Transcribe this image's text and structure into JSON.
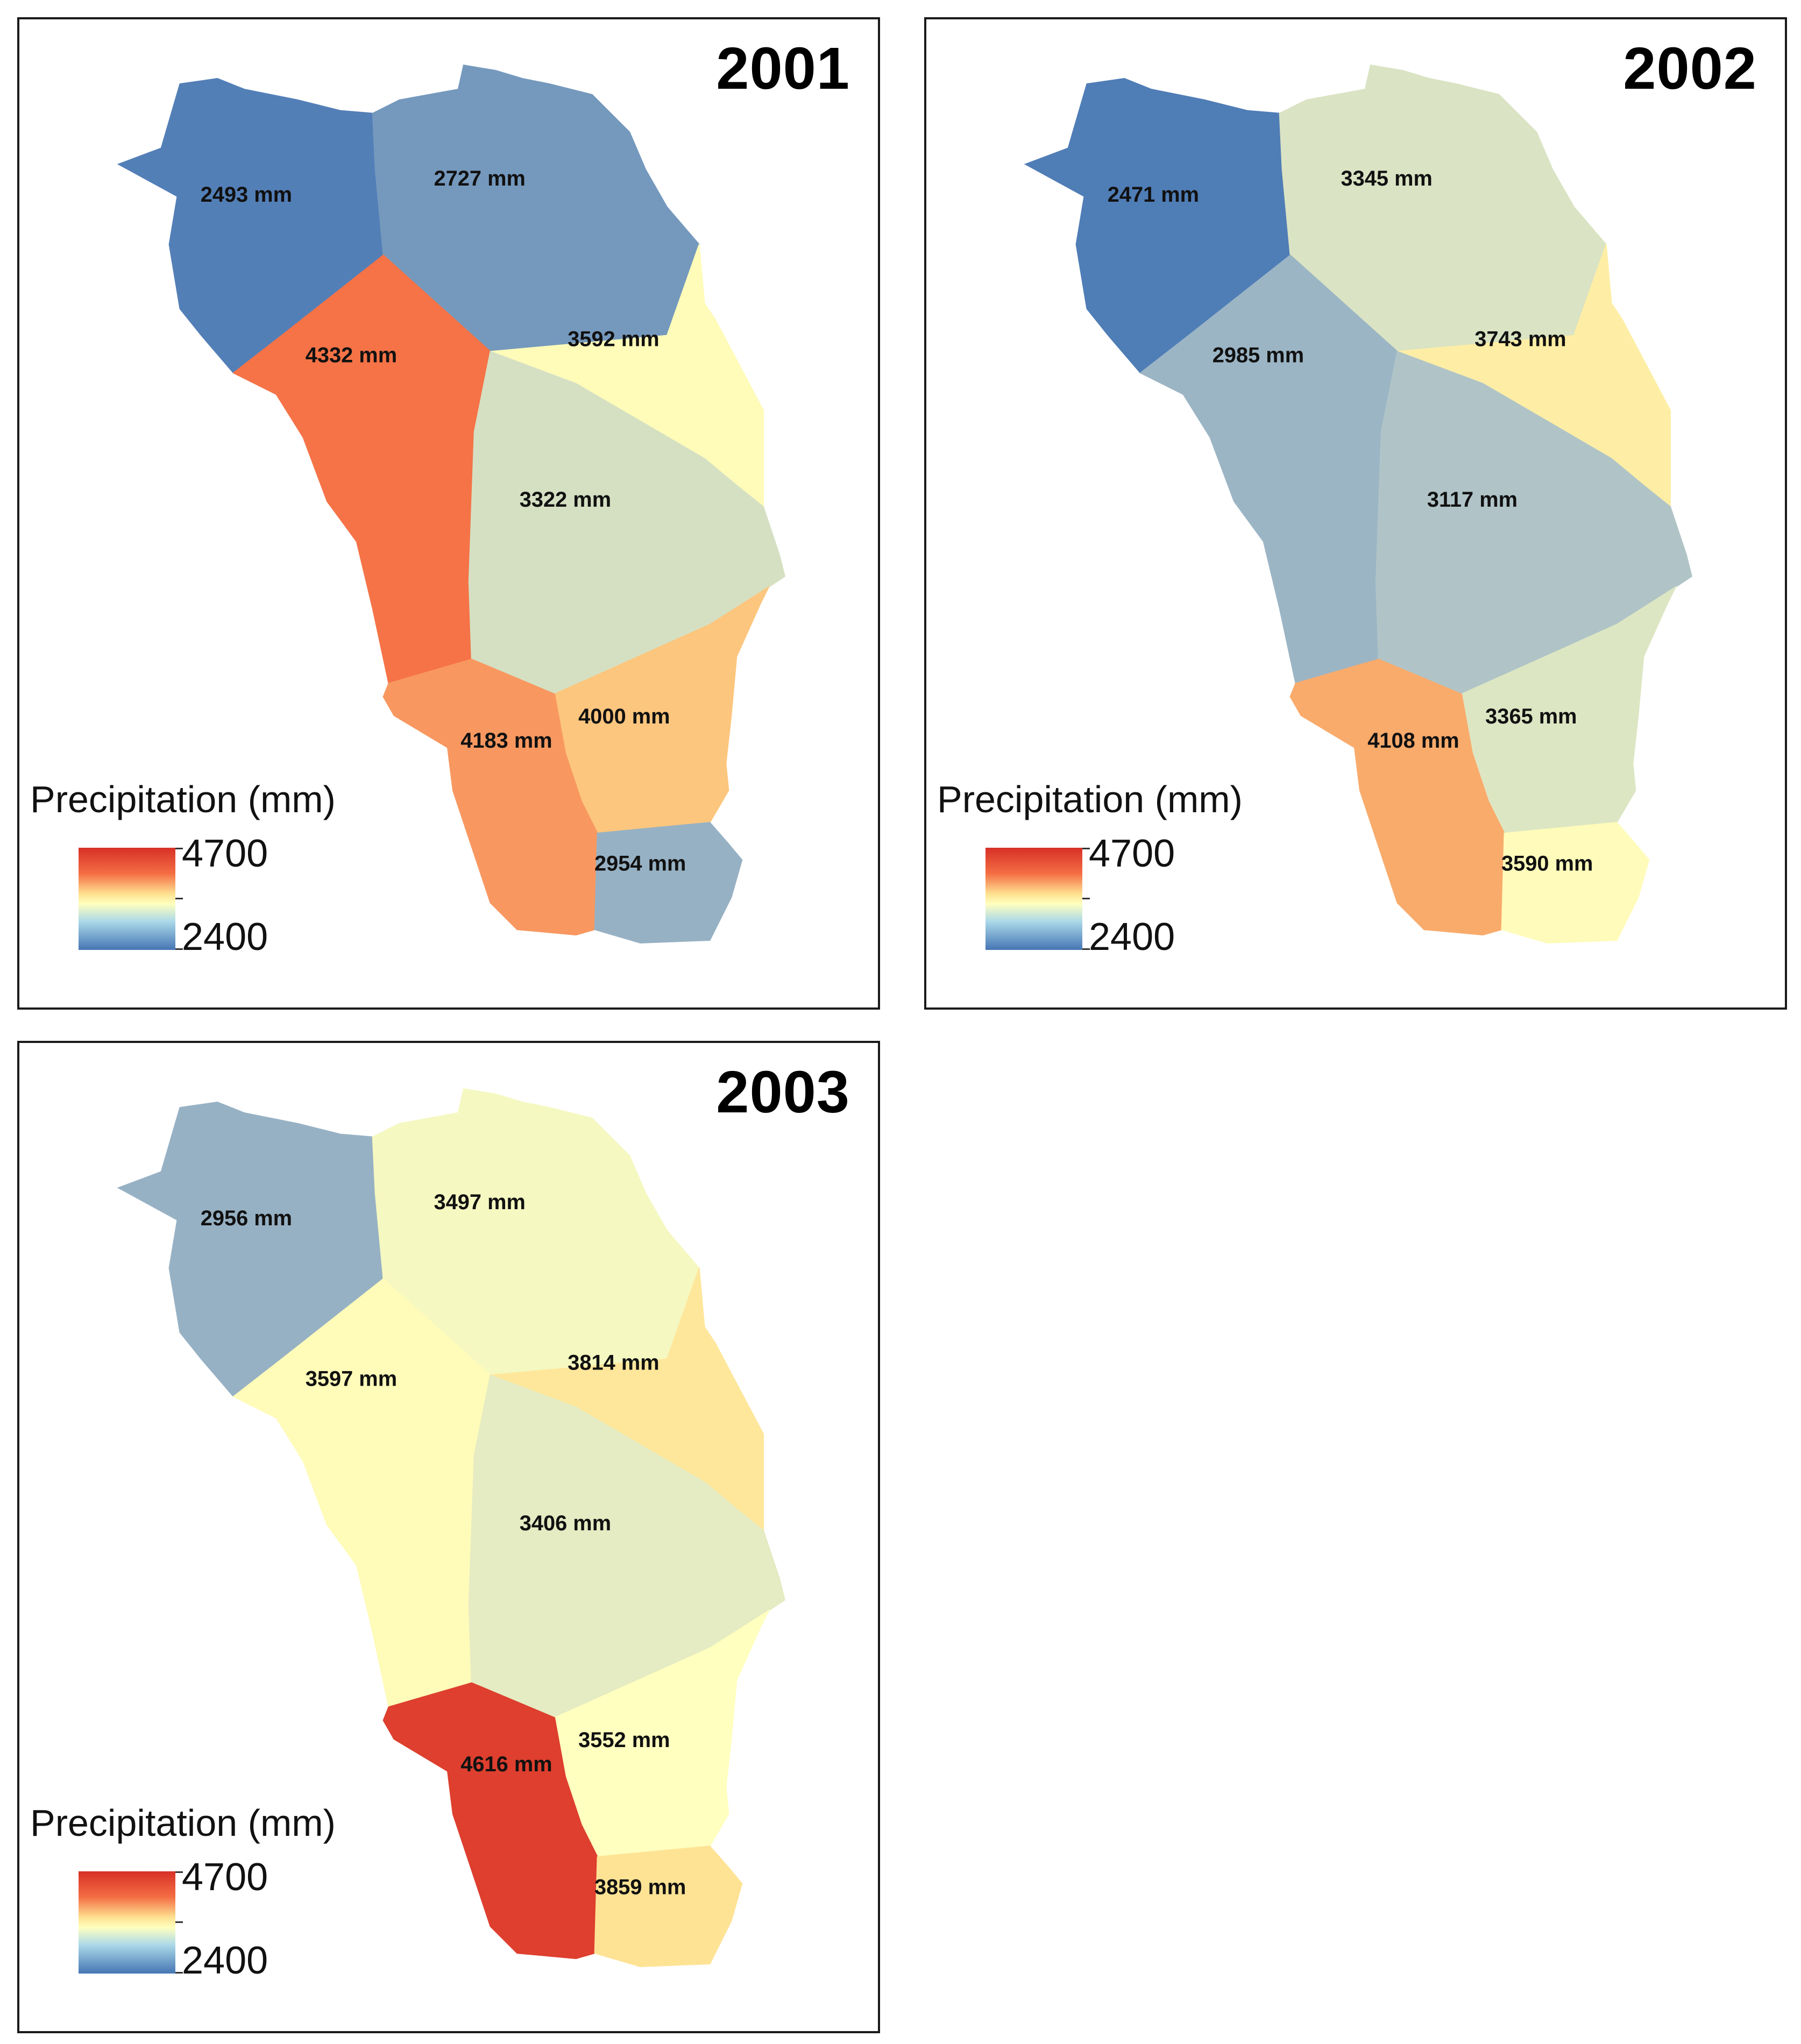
{
  "legend": {
    "title": "Precipitation (mm)",
    "max": "4700",
    "min": "2400",
    "max_value": 4700,
    "min_value": 2400
  },
  "color_ramp": [
    "#4575b4",
    "#abd9e9",
    "#ffffbf",
    "#fee090",
    "#f46d43",
    "#d73027"
  ],
  "panels": [
    {
      "year": "2001",
      "zones": [
        {
          "id": "nw",
          "label": "2493 mm",
          "value": 2493
        },
        {
          "id": "n",
          "label": "2727 mm",
          "value": 2727
        },
        {
          "id": "w",
          "label": "4332 mm",
          "value": 4332
        },
        {
          "id": "ne",
          "label": "3592 mm",
          "value": 3592
        },
        {
          "id": "c",
          "label": "3322 mm",
          "value": 3322
        },
        {
          "id": "e",
          "label": "4000 mm",
          "value": 4000
        },
        {
          "id": "sw",
          "label": "4183 mm",
          "value": 4183
        },
        {
          "id": "s",
          "label": "2954 mm",
          "value": 2954
        }
      ]
    },
    {
      "year": "2002",
      "zones": [
        {
          "id": "nw",
          "label": "2471 mm",
          "value": 2471
        },
        {
          "id": "n",
          "label": "3345 mm",
          "value": 3345
        },
        {
          "id": "w",
          "label": "2985 mm",
          "value": 2985
        },
        {
          "id": "ne",
          "label": "3743 mm",
          "value": 3743
        },
        {
          "id": "c",
          "label": "3117 mm",
          "value": 3117
        },
        {
          "id": "e",
          "label": "3365 mm",
          "value": 3365
        },
        {
          "id": "sw",
          "label": "4108 mm",
          "value": 4108
        },
        {
          "id": "s",
          "label": "3590 mm",
          "value": 3590
        }
      ]
    },
    {
      "year": "2003",
      "zones": [
        {
          "id": "nw",
          "label": "2956 mm",
          "value": 2956
        },
        {
          "id": "n",
          "label": "3497 mm",
          "value": 3497
        },
        {
          "id": "w",
          "label": "3597 mm",
          "value": 3597
        },
        {
          "id": "ne",
          "label": "3814 mm",
          "value": 3814
        },
        {
          "id": "c",
          "label": "3406 mm",
          "value": 3406
        },
        {
          "id": "e",
          "label": "3552 mm",
          "value": 3552
        },
        {
          "id": "sw",
          "label": "4616 mm",
          "value": 4616
        },
        {
          "id": "s",
          "label": "3859 mm",
          "value": 3859
        }
      ]
    }
  ]
}
